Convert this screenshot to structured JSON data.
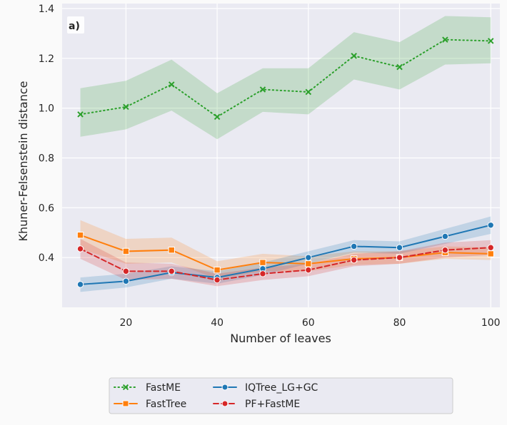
{
  "chart_data": {
    "type": "line",
    "panel_label": "a)",
    "xlabel": "Number of leaves",
    "ylabel": "Khuner-Felsenstein distance",
    "xlim": [
      6,
      102
    ],
    "ylim": [
      0.2,
      1.42
    ],
    "xticks": [
      "20",
      "40",
      "60",
      "80",
      "100"
    ],
    "yticks": [
      "0.4",
      "0.6",
      "0.8",
      "1.0",
      "1.2",
      "1.4"
    ],
    "grid": true,
    "legend_position": "bottom",
    "x": [
      10,
      20,
      30,
      40,
      50,
      60,
      70,
      80,
      90,
      100
    ],
    "series": [
      {
        "name": "FastME",
        "color": "#2ca02c",
        "marker": "x",
        "linestyle": "dotted",
        "values": [
          0.975,
          1.005,
          1.095,
          0.965,
          1.075,
          1.065,
          1.21,
          1.165,
          1.275,
          1.27
        ],
        "lower": [
          0.885,
          0.915,
          0.99,
          0.875,
          0.985,
          0.975,
          1.115,
          1.075,
          1.175,
          1.18
        ],
        "upper": [
          1.08,
          1.11,
          1.195,
          1.06,
          1.16,
          1.16,
          1.305,
          1.265,
          1.37,
          1.365
        ]
      },
      {
        "name": "FastTree",
        "color": "#ff7f0e",
        "marker": "square",
        "linestyle": "solid",
        "values": [
          0.49,
          0.425,
          0.43,
          0.35,
          0.38,
          0.375,
          0.395,
          0.4,
          0.42,
          0.415
        ],
        "lower": [
          0.435,
          0.375,
          0.38,
          0.315,
          0.345,
          0.345,
          0.37,
          0.375,
          0.395,
          0.39
        ],
        "upper": [
          0.55,
          0.475,
          0.48,
          0.385,
          0.415,
          0.405,
          0.425,
          0.425,
          0.445,
          0.44
        ]
      },
      {
        "name": "IQTree_LG+GC",
        "color": "#1f77b4",
        "marker": "circle",
        "linestyle": "solid",
        "values": [
          0.292,
          0.305,
          0.34,
          0.32,
          0.355,
          0.4,
          0.445,
          0.44,
          0.485,
          0.53
        ],
        "lower": [
          0.262,
          0.28,
          0.315,
          0.295,
          0.33,
          0.375,
          0.42,
          0.415,
          0.455,
          0.495
        ],
        "upper": [
          0.32,
          0.335,
          0.365,
          0.345,
          0.38,
          0.425,
          0.47,
          0.465,
          0.515,
          0.565
        ]
      },
      {
        "name": "PF+FastME",
        "color": "#d62728",
        "marker": "circle",
        "linestyle": "dashed",
        "values": [
          0.435,
          0.345,
          0.345,
          0.31,
          0.335,
          0.35,
          0.39,
          0.4,
          0.43,
          0.44
        ],
        "lower": [
          0.395,
          0.31,
          0.315,
          0.285,
          0.31,
          0.325,
          0.365,
          0.375,
          0.4,
          0.41
        ],
        "upper": [
          0.475,
          0.38,
          0.375,
          0.335,
          0.36,
          0.375,
          0.415,
          0.425,
          0.46,
          0.47
        ]
      }
    ]
  }
}
